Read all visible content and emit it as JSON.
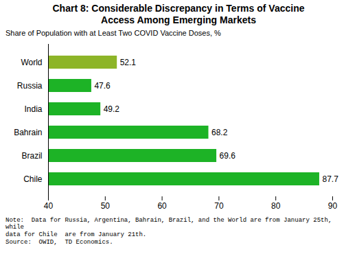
{
  "chart_data": {
    "type": "bar",
    "title": "Chart 8: Considerable Discrepancy in Terms of Vaccine\nAccess Among Emerging Markets",
    "subtitle": "Share of Population with at Least Two COVID Vaccine Doses, %",
    "note": "Note:  Data for Russia, Argentina, Bahrain, Brazil, and the World are from January 25th, while\ndata for Chile  are from January 21th.\nSource:  OWID,  TD Economics.",
    "categories": [
      "Chile",
      "Brazil",
      "Bahrain",
      "India",
      "Russia",
      "World"
    ],
    "values": [
      87.7,
      69.6,
      68.2,
      49.2,
      47.6,
      52.1
    ],
    "colors": [
      "#1DB326",
      "#1DB326",
      "#1DB326",
      "#1DB326",
      "#1DB326",
      "#8DB528"
    ],
    "orientation": "horizontal",
    "xlim": [
      40,
      90
    ],
    "xticks": [
      40,
      50,
      60,
      70,
      80,
      90
    ],
    "grid": false,
    "data_labels": true
  }
}
